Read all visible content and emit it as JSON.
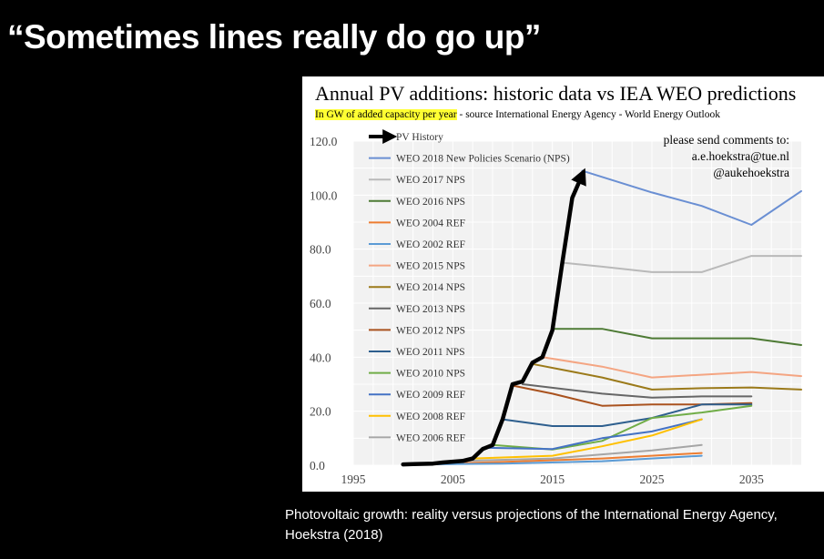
{
  "slide": {
    "title": "“Sometimes lines really do go up”",
    "caption": "Photovoltaic growth: reality versus projections of the International Energy Agency, Hoekstra (2018)"
  },
  "chart_data": {
    "type": "line",
    "title": "Annual PV additions: historic data vs IEA WEO predictions",
    "subtitle_highlight": "In GW of added capacity per year",
    "subtitle_rest": " - source International Energy Agency - World Energy Outlook",
    "comments": [
      "please send comments to:",
      "a.e.hoekstra@tue.nl",
      "@aukehoekstra"
    ],
    "xlim": [
      1995,
      2040
    ],
    "ylim": [
      0,
      120
    ],
    "x_ticks": [
      1995,
      2005,
      2015,
      2025,
      2035
    ],
    "y_ticks": [
      "0.0",
      "20.0",
      "40.0",
      "60.0",
      "80.0",
      "100.0",
      "120.0"
    ],
    "legend_position": "top-left",
    "grid": true,
    "series": [
      {
        "name": "PV History",
        "color": "#000000",
        "width": 4.5,
        "arrow": true,
        "points": [
          [
            2000,
            0.3
          ],
          [
            2001,
            0.4
          ],
          [
            2002,
            0.5
          ],
          [
            2003,
            0.6
          ],
          [
            2004,
            1.0
          ],
          [
            2005,
            1.3
          ],
          [
            2006,
            1.6
          ],
          [
            2007,
            2.5
          ],
          [
            2008,
            6.0
          ],
          [
            2009,
            7.5
          ],
          [
            2010,
            17.0
          ],
          [
            2011,
            30.0
          ],
          [
            2012,
            31.0
          ],
          [
            2013,
            38.0
          ],
          [
            2014,
            40.0
          ],
          [
            2015,
            50.0
          ],
          [
            2016,
            75.0
          ],
          [
            2017,
            99.0
          ],
          [
            2018,
            107.5
          ]
        ]
      },
      {
        "name": "WEO 2018 New Policies Scenario (NPS)",
        "color": "#6a8fd3",
        "width": 2,
        "points": [
          [
            2018,
            109
          ],
          [
            2025,
            101
          ],
          [
            2030,
            96
          ],
          [
            2035,
            89
          ],
          [
            2040,
            101.5
          ]
        ]
      },
      {
        "name": "WEO 2017 NPS",
        "color": "#b9b9b9",
        "width": 2,
        "points": [
          [
            2016,
            75
          ],
          [
            2020,
            73.5
          ],
          [
            2025,
            71.5
          ],
          [
            2030,
            71.5
          ],
          [
            2035,
            77.5
          ],
          [
            2040,
            77.5
          ]
        ]
      },
      {
        "name": "WEO 2016 NPS",
        "color": "#4d7a34",
        "width": 2,
        "points": [
          [
            2015,
            50.5
          ],
          [
            2020,
            50.5
          ],
          [
            2025,
            47
          ],
          [
            2030,
            47
          ],
          [
            2035,
            47
          ],
          [
            2040,
            44.5
          ]
        ]
      },
      {
        "name": "WEO 2004 REF",
        "color": "#ed7d31",
        "width": 2,
        "points": [
          [
            2002,
            0.4
          ],
          [
            2010,
            1.2
          ],
          [
            2020,
            2.5
          ],
          [
            2030,
            4.5
          ]
        ]
      },
      {
        "name": "WEO 2002 REF",
        "color": "#5b9bd5",
        "width": 2,
        "points": [
          [
            2000,
            0.2
          ],
          [
            2010,
            0.6
          ],
          [
            2020,
            1.5
          ],
          [
            2030,
            3.5
          ]
        ]
      },
      {
        "name": "WEO 2015 NPS",
        "color": "#f4a582",
        "width": 2,
        "points": [
          [
            2014,
            40
          ],
          [
            2020,
            36.5
          ],
          [
            2025,
            32.5
          ],
          [
            2030,
            33.5
          ],
          [
            2035,
            34.5
          ],
          [
            2040,
            33
          ]
        ]
      },
      {
        "name": "WEO 2014 NPS",
        "color": "#9b7a1a",
        "width": 2,
        "points": [
          [
            2013,
            37.5
          ],
          [
            2020,
            32.5
          ],
          [
            2025,
            28
          ],
          [
            2030,
            28.5
          ],
          [
            2035,
            28.8
          ],
          [
            2040,
            28
          ]
        ]
      },
      {
        "name": "WEO 2013 NPS",
        "color": "#666666",
        "width": 2,
        "points": [
          [
            2012,
            30
          ],
          [
            2020,
            26.5
          ],
          [
            2025,
            25
          ],
          [
            2030,
            25.5
          ],
          [
            2035,
            25.5
          ]
        ]
      },
      {
        "name": "WEO 2012 NPS",
        "color": "#a9521e",
        "width": 2,
        "points": [
          [
            2011,
            29.5
          ],
          [
            2015,
            26.5
          ],
          [
            2020,
            22
          ],
          [
            2025,
            22.5
          ],
          [
            2030,
            22.5
          ],
          [
            2035,
            23
          ]
        ]
      },
      {
        "name": "WEO 2011 NPS",
        "color": "#2e5f8e",
        "width": 2,
        "points": [
          [
            2010,
            17
          ],
          [
            2015,
            14.5
          ],
          [
            2020,
            14.5
          ],
          [
            2025,
            17.5
          ],
          [
            2030,
            22.5
          ],
          [
            2035,
            22.5
          ]
        ]
      },
      {
        "name": "WEO 2010 NPS",
        "color": "#70ad47",
        "width": 2,
        "points": [
          [
            2009,
            7.5
          ],
          [
            2015,
            5.8
          ],
          [
            2020,
            9
          ],
          [
            2025,
            17.5
          ],
          [
            2030,
            19.5
          ],
          [
            2035,
            22
          ]
        ]
      },
      {
        "name": "WEO 2009 REF",
        "color": "#4472c4",
        "width": 2,
        "points": [
          [
            2008,
            6.5
          ],
          [
            2015,
            6
          ],
          [
            2020,
            10
          ],
          [
            2025,
            12.5
          ],
          [
            2030,
            17
          ]
        ]
      },
      {
        "name": "WEO 2008 REF",
        "color": "#ffc000",
        "width": 2,
        "points": [
          [
            2007,
            2.5
          ],
          [
            2015,
            3.5
          ],
          [
            2020,
            7
          ],
          [
            2025,
            11
          ],
          [
            2030,
            17
          ]
        ]
      },
      {
        "name": "WEO 2006 REF",
        "color": "#a5a5a5",
        "width": 2,
        "points": [
          [
            2005,
            1.5
          ],
          [
            2015,
            2.5
          ],
          [
            2020,
            4
          ],
          [
            2025,
            5.5
          ],
          [
            2030,
            7.5
          ]
        ]
      }
    ]
  }
}
